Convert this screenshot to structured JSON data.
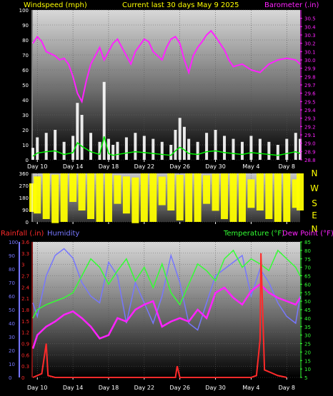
{
  "header": {
    "wind_title": "Windspeed (mph)",
    "period_title": "Current last 30 days May 9 2025",
    "baro_title": "Barometer (.in)"
  },
  "colors": {
    "background": "#000000",
    "wind": "#ffffff",
    "gust": "#ffffff",
    "wind_avg": "#00ee00",
    "barometer": "#ff22ff",
    "direction": "#ffff00",
    "rainfall": "#ff2a2a",
    "humidity": "#7777ff",
    "temperature": "#33ff33",
    "dew_point": "#ff22ff",
    "axis_label": "#ffff00"
  },
  "x_ticks": [
    "Day 10",
    "Day 14",
    "Day 18",
    "Day 22",
    "Day 26",
    "Day 30",
    "May 4",
    "Day 8"
  ],
  "chart_data": [
    {
      "type": "line",
      "title": "Current last 30 days May 9 2025",
      "series": [
        {
          "name": "Windspeed (mph)",
          "axis": "left",
          "ylim": [
            0,
            100
          ],
          "ticks": [
            "0",
            "10",
            "20",
            "30",
            "40",
            "50",
            "60",
            "70",
            "80",
            "90",
            "100"
          ],
          "days": [
            9.5,
            10,
            11,
            12,
            13,
            14,
            14.5,
            15,
            16,
            17,
            17.5,
            18,
            18.5,
            19,
            20,
            21,
            22,
            23,
            24,
            25,
            25.5,
            26,
            26.5,
            27,
            28,
            29,
            30,
            31,
            32,
            33,
            34,
            35,
            36,
            37,
            38,
            39,
            39.5
          ],
          "values": [
            8,
            15,
            18,
            20,
            12,
            16,
            38,
            30,
            18,
            12,
            52,
            14,
            10,
            12,
            15,
            18,
            16,
            14,
            12,
            10,
            20,
            28,
            22,
            14,
            12,
            18,
            20,
            16,
            14,
            12,
            16,
            14,
            12,
            10,
            14,
            18,
            14
          ]
        },
        {
          "name": "Barometer (.in)",
          "axis": "right",
          "ylim": [
            28.8,
            30.6
          ],
          "ticks": [
            "28.8",
            "28.9",
            "29.0",
            "29.1",
            "29.2",
            "29.3",
            "29.4",
            "29.5",
            "29.6",
            "29.7",
            "29.8",
            "29.9",
            "30.0",
            "30.1",
            "30.2",
            "30.3",
            "30.4",
            "30.5"
          ],
          "days": [
            9.5,
            10,
            10.5,
            11,
            12,
            12.5,
            13,
            13.5,
            14,
            14.5,
            15,
            15.5,
            16,
            17,
            17.5,
            18,
            18.5,
            19,
            20,
            20.5,
            21,
            22,
            22.5,
            23,
            24,
            24.5,
            25,
            25.5,
            26,
            26.5,
            27,
            27.5,
            28,
            28.5,
            29,
            29.5,
            30,
            31,
            31.5,
            32,
            33,
            34,
            35,
            35.5,
            36,
            37,
            38,
            39,
            39.5
          ],
          "values": [
            30.2,
            30.28,
            30.22,
            30.1,
            30.05,
            30.0,
            30.02,
            29.95,
            29.8,
            29.6,
            29.5,
            29.75,
            29.95,
            30.15,
            30.0,
            30.1,
            30.2,
            30.25,
            30.05,
            29.95,
            30.1,
            30.25,
            30.22,
            30.1,
            30.0,
            30.15,
            30.25,
            30.28,
            30.2,
            30.0,
            29.85,
            30.05,
            30.15,
            30.22,
            30.3,
            30.35,
            30.28,
            30.12,
            30.0,
            29.92,
            29.95,
            29.88,
            29.85,
            29.9,
            29.95,
            30.0,
            30.02,
            30.0,
            29.95
          ]
        }
      ]
    },
    {
      "type": "area",
      "series": [
        {
          "name": "Wind Direction",
          "ylim": [
            0,
            360
          ],
          "ticks": [
            "0",
            "90",
            "180",
            "270",
            "360"
          ],
          "compass": [
            "N",
            "W",
            "S",
            "E",
            "N"
          ],
          "days": [
            9.5,
            10,
            11,
            12,
            13,
            14,
            15,
            16,
            17,
            18,
            19,
            20,
            21,
            22,
            23,
            24,
            25,
            26,
            27,
            28,
            29,
            30,
            31,
            32,
            33,
            34,
            35,
            36,
            37,
            38,
            39,
            39.5
          ],
          "values": [
            180,
            200,
            220,
            150,
            260,
            300,
            230,
            250,
            280,
            220,
            240,
            200,
            160,
            260,
            300,
            230,
            250,
            180,
            200,
            260,
            240,
            220,
            190,
            250,
            200,
            210,
            230,
            220,
            200,
            190,
            210,
            230
          ]
        }
      ]
    },
    {
      "type": "line",
      "series": [
        {
          "name": "Rainfall (.in)",
          "axis": "left-outer",
          "ylim": [
            0,
            3.6
          ],
          "ticks": [
            "0",
            "0.3",
            "0.6",
            "0.9",
            "1.2",
            "1.5",
            "1.8",
            "2.1",
            "2.4",
            "2.7",
            "3",
            "3.3",
            "3.6"
          ],
          "days": [
            9.5,
            10.5,
            11,
            11.2,
            12,
            20,
            25.5,
            25.7,
            26,
            33,
            34,
            34.6,
            35,
            35.1,
            35.5,
            37,
            38
          ],
          "values": [
            0,
            0.1,
            0.9,
            0.05,
            0,
            0,
            0,
            0.3,
            0,
            0,
            0,
            0.05,
            1.0,
            3.3,
            0.2,
            0.05,
            0
          ]
        },
        {
          "name": "Humidity",
          "axis": "left-inner",
          "ylim": [
            0,
            100
          ],
          "ticks": [
            "0",
            "10",
            "20",
            "30",
            "40",
            "50",
            "60",
            "70",
            "80",
            "90",
            "100"
          ],
          "days": [
            9.5,
            10,
            11,
            12,
            13,
            14,
            15,
            16,
            17,
            18,
            19,
            20,
            21,
            22,
            23,
            24,
            25,
            26,
            27,
            28,
            29,
            30,
            31,
            32,
            33,
            34,
            35,
            36,
            37,
            38,
            39,
            39.5
          ],
          "values": [
            55,
            45,
            75,
            90,
            95,
            88,
            70,
            60,
            55,
            85,
            75,
            40,
            70,
            55,
            40,
            60,
            90,
            70,
            40,
            35,
            55,
            75,
            80,
            85,
            90,
            60,
            80,
            70,
            55,
            45,
            40,
            60
          ]
        },
        {
          "name": "Temperature (°F)",
          "axis": "right",
          "ylim": [
            5,
            85
          ],
          "ticks": [
            "5",
            "10",
            "15",
            "20",
            "25",
            "30",
            "35",
            "40",
            "45",
            "50",
            "55",
            "60",
            "65",
            "70",
            "75",
            "80",
            "85"
          ],
          "days": [
            9.5,
            10,
            11,
            12,
            13,
            14,
            15,
            16,
            17,
            18,
            19,
            20,
            21,
            22,
            23,
            24,
            25,
            26,
            27,
            28,
            29,
            30,
            31,
            32,
            33,
            34,
            35,
            36,
            37,
            38,
            39,
            39.5
          ],
          "values": [
            40,
            45,
            48,
            50,
            52,
            55,
            65,
            75,
            70,
            60,
            68,
            75,
            62,
            70,
            58,
            72,
            55,
            48,
            60,
            72,
            68,
            62,
            75,
            80,
            70,
            75,
            72,
            68,
            80,
            75,
            70,
            65
          ]
        },
        {
          "name": "Dew Point (°F)",
          "axis": "right",
          "ylim": [
            5,
            85
          ],
          "ticks": [],
          "days": [
            9.5,
            10,
            11,
            12,
            13,
            14,
            15,
            16,
            17,
            18,
            19,
            20,
            21,
            22,
            23,
            24,
            25,
            26,
            27,
            28,
            29,
            30,
            31,
            32,
            33,
            34,
            35,
            36,
            37,
            38,
            39,
            39.5
          ],
          "values": [
            22,
            30,
            35,
            38,
            42,
            44,
            40,
            35,
            28,
            30,
            40,
            38,
            45,
            48,
            50,
            35,
            38,
            40,
            38,
            45,
            40,
            55,
            58,
            52,
            48,
            56,
            60,
            55,
            52,
            50,
            48,
            52
          ]
        }
      ]
    }
  ],
  "labels": {
    "rain_title": "Rainfall (.in)",
    "humidity_title": "Humidity",
    "temp_title": "Temperature (°F)",
    "dew_title": "Dew Point (°F)"
  }
}
